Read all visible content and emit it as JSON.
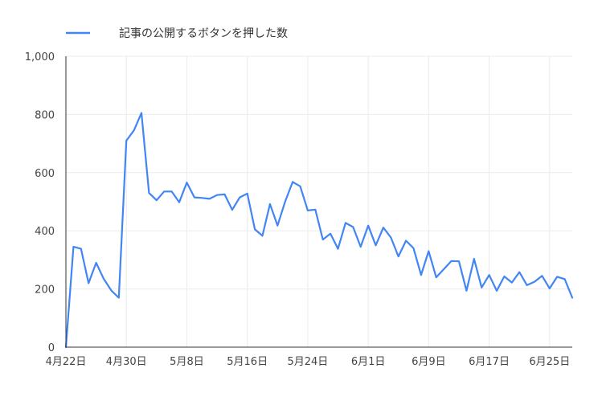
{
  "chart_data": {
    "type": "line",
    "legend": {
      "position": "top-left",
      "label": "記事の公開するボタンを押した数",
      "color": "#4285f4"
    },
    "grid": true,
    "ylim": [
      0,
      1000
    ],
    "yticks": [
      {
        "value": 0,
        "label": "0"
      },
      {
        "value": 200,
        "label": "200"
      },
      {
        "value": 400,
        "label": "400"
      },
      {
        "value": 600,
        "label": "600"
      },
      {
        "value": 800,
        "label": "800"
      },
      {
        "value": 1000,
        "label": "1,000"
      }
    ],
    "xticks": [
      {
        "date": "2023-04-22",
        "label": "4月22日"
      },
      {
        "date": "2023-04-30",
        "label": "4月30日"
      },
      {
        "date": "2023-05-08",
        "label": "5月8日"
      },
      {
        "date": "2023-05-16",
        "label": "5月16日"
      },
      {
        "date": "2023-05-24",
        "label": "5月24日"
      },
      {
        "date": "2023-06-01",
        "label": "6月1日"
      },
      {
        "date": "2023-06-09",
        "label": "6月9日"
      },
      {
        "date": "2023-06-17",
        "label": "6月17日"
      },
      {
        "date": "2023-06-25",
        "label": "6月25日"
      }
    ],
    "xlim": [
      "2023-04-22",
      "2023-06-28"
    ],
    "series": [
      {
        "name": "記事の公開するボタンを押した数",
        "color": "#4285f4",
        "points": [
          [
            "2023-04-22",
            0
          ],
          [
            "2023-04-23",
            345
          ],
          [
            "2023-04-24",
            338
          ],
          [
            "2023-04-25",
            220
          ],
          [
            "2023-04-26",
            290
          ],
          [
            "2023-04-27",
            235
          ],
          [
            "2023-04-28",
            195
          ],
          [
            "2023-04-29",
            170
          ],
          [
            "2023-04-30",
            710
          ],
          [
            "2023-05-01",
            745
          ],
          [
            "2023-05-02",
            805
          ],
          [
            "2023-05-03",
            530
          ],
          [
            "2023-05-04",
            505
          ],
          [
            "2023-05-05",
            535
          ],
          [
            "2023-05-06",
            535
          ],
          [
            "2023-05-07",
            498
          ],
          [
            "2023-05-08",
            566
          ],
          [
            "2023-05-09",
            515
          ],
          [
            "2023-05-10",
            513
          ],
          [
            "2023-05-11",
            510
          ],
          [
            "2023-05-12",
            523
          ],
          [
            "2023-05-13",
            525
          ],
          [
            "2023-05-14",
            472
          ],
          [
            "2023-05-15",
            515
          ],
          [
            "2023-05-16",
            528
          ],
          [
            "2023-05-17",
            405
          ],
          [
            "2023-05-18",
            383
          ],
          [
            "2023-05-19",
            492
          ],
          [
            "2023-05-20",
            418
          ],
          [
            "2023-05-21",
            500
          ],
          [
            "2023-05-22",
            568
          ],
          [
            "2023-05-23",
            553
          ],
          [
            "2023-05-24",
            470
          ],
          [
            "2023-05-25",
            473
          ],
          [
            "2023-05-26",
            370
          ],
          [
            "2023-05-27",
            390
          ],
          [
            "2023-05-28",
            338
          ],
          [
            "2023-05-29",
            427
          ],
          [
            "2023-05-30",
            413
          ],
          [
            "2023-05-31",
            345
          ],
          [
            "2023-06-01",
            418
          ],
          [
            "2023-06-02",
            350
          ],
          [
            "2023-06-03",
            411
          ],
          [
            "2023-06-04",
            377
          ],
          [
            "2023-06-05",
            312
          ],
          [
            "2023-06-06",
            366
          ],
          [
            "2023-06-07",
            340
          ],
          [
            "2023-06-08",
            248
          ],
          [
            "2023-06-09",
            330
          ],
          [
            "2023-06-10",
            240
          ],
          [
            "2023-06-11",
            268
          ],
          [
            "2023-06-12",
            296
          ],
          [
            "2023-06-13",
            295
          ],
          [
            "2023-06-14",
            194
          ],
          [
            "2023-06-15",
            304
          ],
          [
            "2023-06-16",
            205
          ],
          [
            "2023-06-17",
            248
          ],
          [
            "2023-06-18",
            194
          ],
          [
            "2023-06-19",
            243
          ],
          [
            "2023-06-20",
            222
          ],
          [
            "2023-06-21",
            258
          ],
          [
            "2023-06-22",
            213
          ],
          [
            "2023-06-23",
            225
          ],
          [
            "2023-06-24",
            245
          ],
          [
            "2023-06-25",
            202
          ],
          [
            "2023-06-26",
            242
          ],
          [
            "2023-06-27",
            234
          ],
          [
            "2023-06-28",
            170
          ]
        ]
      }
    ]
  }
}
